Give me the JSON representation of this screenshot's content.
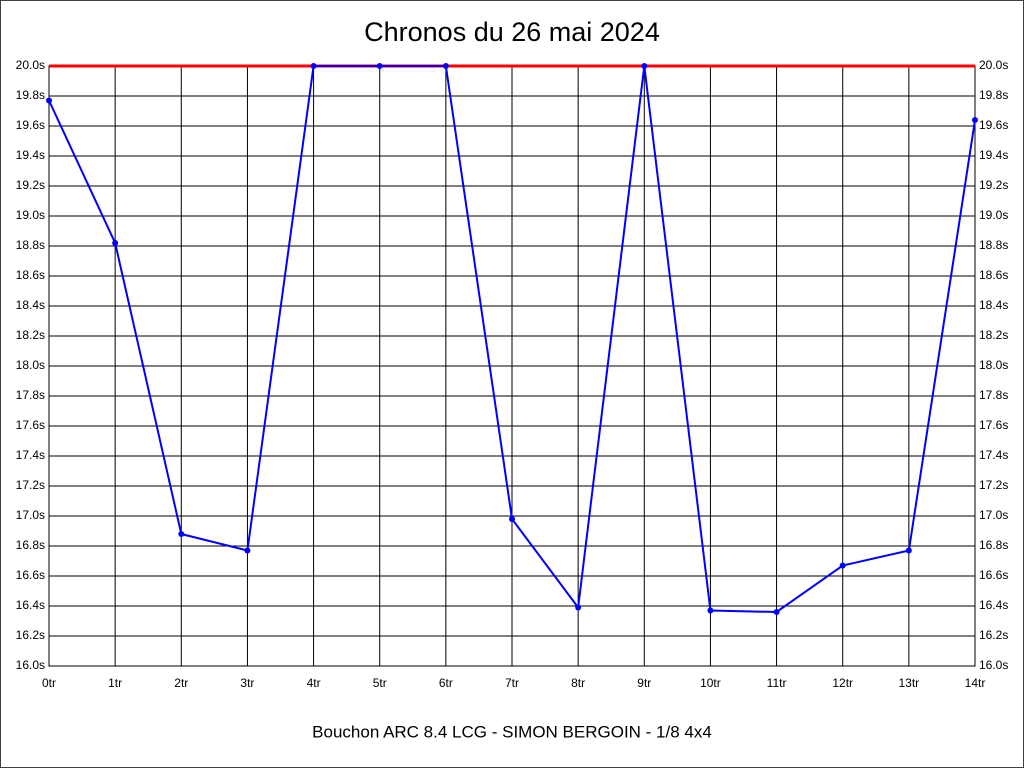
{
  "chart_data": {
    "type": "line",
    "title": "Chronos du 26 mai 2024",
    "subtitle": "Bouchon ARC 8.4 LCG - SIMON BERGOIN - 1/8 4x4",
    "categories": [
      "0tr",
      "1tr",
      "2tr",
      "3tr",
      "4tr",
      "5tr",
      "6tr",
      "7tr",
      "8tr",
      "9tr",
      "10tr",
      "11tr",
      "12tr",
      "13tr",
      "14tr"
    ],
    "series": [
      {
        "color": "#0000ff",
        "values": [
          19.77,
          18.82,
          16.88,
          16.77,
          20.0,
          20.0,
          20.0,
          16.98,
          16.39,
          20.0,
          16.37,
          16.36,
          16.67,
          16.77,
          19.64
        ]
      }
    ],
    "reference_line": {
      "value": 20.0,
      "color": "#ff0000"
    },
    "ylim": [
      16.0,
      20.0
    ],
    "yticks": [
      {
        "value": 16.0,
        "label": "16.0s"
      },
      {
        "value": 16.2,
        "label": "16.2s"
      },
      {
        "value": 16.4,
        "label": "16.4s"
      },
      {
        "value": 16.6,
        "label": "16.6s"
      },
      {
        "value": 16.8,
        "label": "16.8s"
      },
      {
        "value": 17.0,
        "label": "17.0s"
      },
      {
        "value": 17.2,
        "label": "17.2s"
      },
      {
        "value": 17.4,
        "label": "17.4s"
      },
      {
        "value": 17.6,
        "label": "17.6s"
      },
      {
        "value": 17.8,
        "label": "17.8s"
      },
      {
        "value": 18.0,
        "label": "18.0s"
      },
      {
        "value": 18.2,
        "label": "18.2s"
      },
      {
        "value": 18.4,
        "label": "18.4s"
      },
      {
        "value": 18.6,
        "label": "18.6s"
      },
      {
        "value": 18.8,
        "label": "18.8s"
      },
      {
        "value": 19.0,
        "label": "19.0s"
      },
      {
        "value": 19.2,
        "label": "19.2s"
      },
      {
        "value": 19.4,
        "label": "19.4s"
      },
      {
        "value": 19.6,
        "label": "19.6s"
      },
      {
        "value": 19.8,
        "label": "19.8s"
      },
      {
        "value": 20.0,
        "label": "20.0s"
      }
    ],
    "grid": true
  }
}
